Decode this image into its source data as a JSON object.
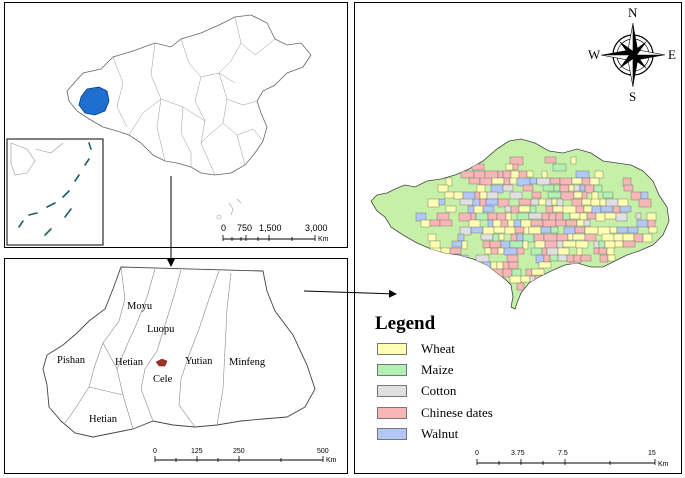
{
  "china_map": {
    "highlight_color": "#1f6fd1",
    "scale_ticks": [
      "0",
      "750",
      "1,500",
      "3,000"
    ],
    "scale_unit": "Km"
  },
  "hetian_map": {
    "counties": [
      "Moyu",
      "Luopu",
      "Pishan",
      "Hetian",
      "Cele",
      "Yutian",
      "Minfeng",
      "Hetian"
    ],
    "study_area_color": "#a0302a",
    "scale_ticks": [
      "0",
      "125",
      "250",
      "500"
    ],
    "scale_unit": "Km"
  },
  "study_map": {
    "compass": {
      "n": "N",
      "s": "S",
      "e": "E",
      "w": "W"
    },
    "legend_title": "Legend",
    "legend": [
      {
        "label": "Wheat",
        "color": "#ffffb3"
      },
      {
        "label": "Maize",
        "color": "#b3f0b3"
      },
      {
        "label": "Cotton",
        "color": "#e0e0e0"
      },
      {
        "label": "Chinese dates",
        "color": "#f7b7b7"
      },
      {
        "label": "Walnut",
        "color": "#b3c8f5"
      }
    ],
    "background_crop_color": "#c6f0a8",
    "scale_ticks": [
      "0",
      "3.75",
      "7.5",
      "15"
    ],
    "scale_unit": "Km"
  }
}
